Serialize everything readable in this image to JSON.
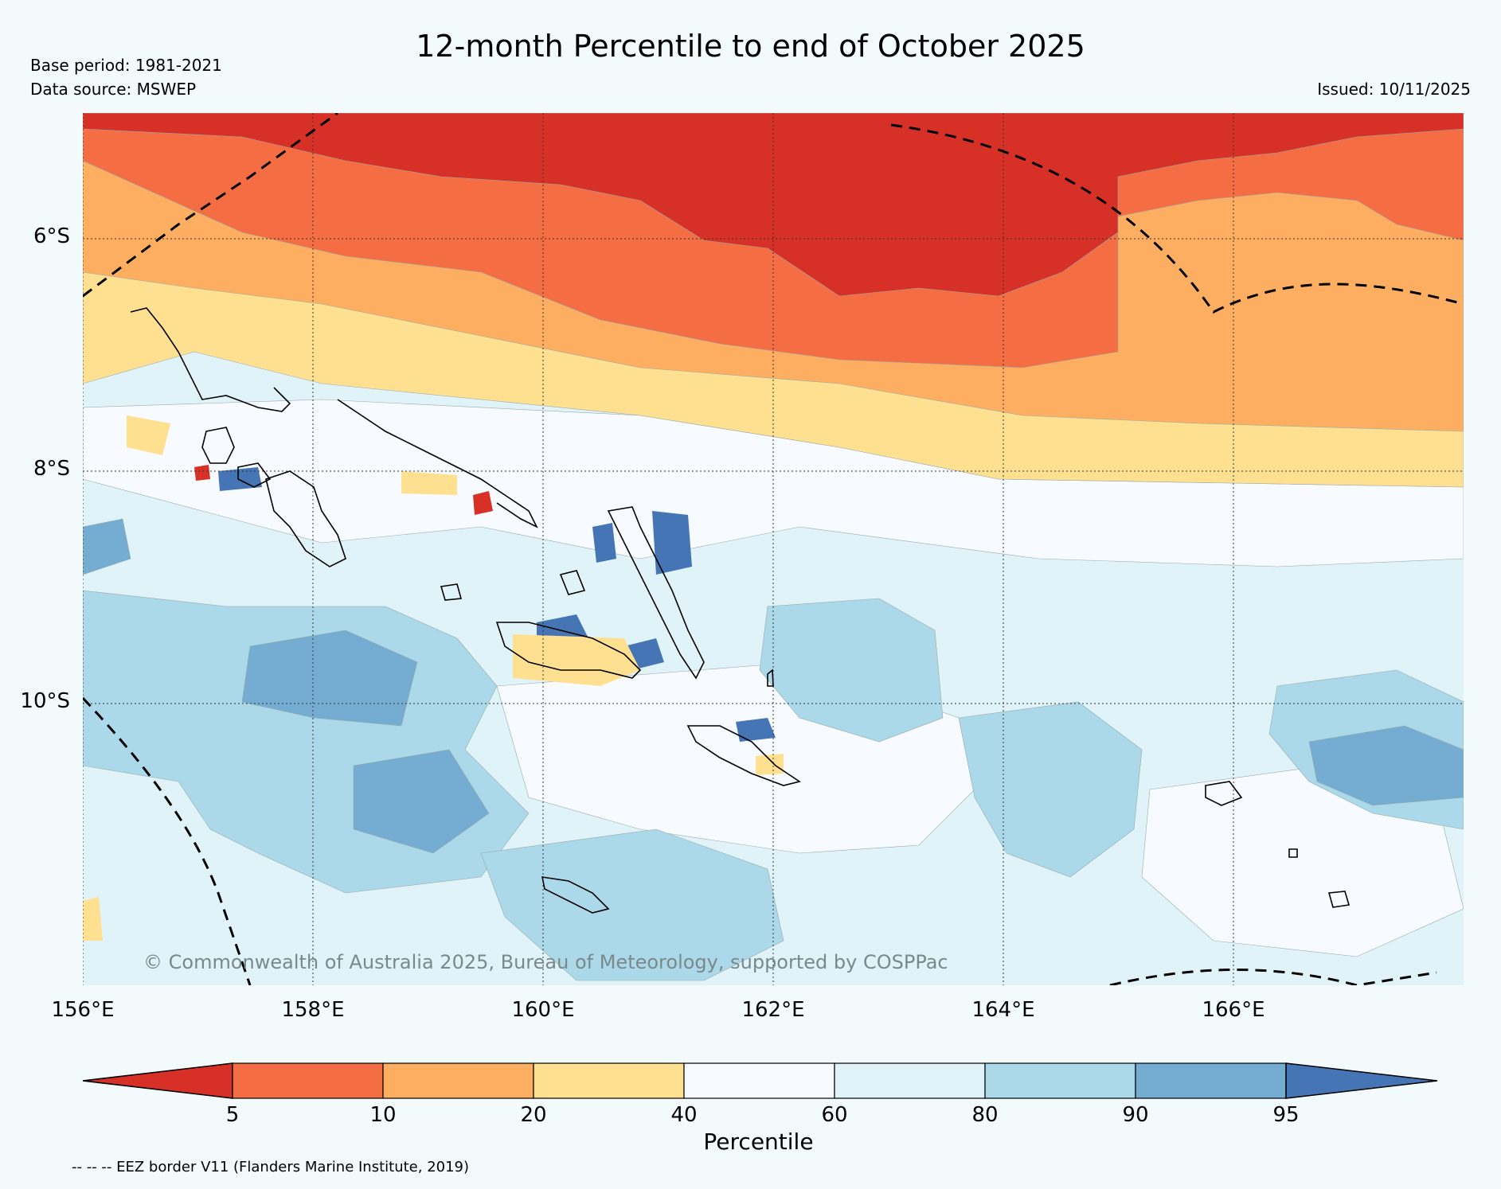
{
  "header": {
    "title": "12-month Percentile to end of October 2025",
    "base_period": "Base period: 1981-2021",
    "data_source": "Data source: MSWEP",
    "issued": "Issued: 10/11/2025"
  },
  "map": {
    "lat_labels": [
      "6°S",
      "8°S",
      "10°S"
    ],
    "lon_labels": [
      "156°E",
      "158°E",
      "160°E",
      "162°E",
      "164°E",
      "166°E"
    ],
    "copyright": "© Commonwealth of Australia 2025, Bureau of Meteorology, supported by COSPPac"
  },
  "colorbar": {
    "label": "Percentile",
    "ticks": [
      "5",
      "10",
      "20",
      "40",
      "60",
      "80",
      "90",
      "95"
    ],
    "colors": [
      "#d73027",
      "#f46d43",
      "#fdae61",
      "#fee090",
      "#f7fbff",
      "#e0f3f8",
      "#abd9e9",
      "#74add1",
      "#4575b4"
    ]
  },
  "footer": {
    "eez_note": "-- -- -- EEZ border V11 (Flanders Marine Institute, 2019)"
  }
}
